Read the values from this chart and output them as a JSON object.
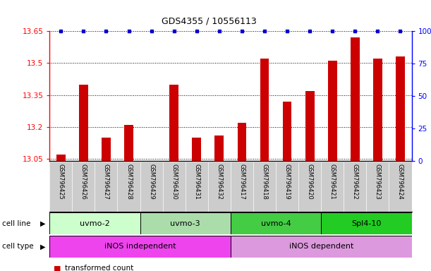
{
  "title": "GDS4355 / 10556113",
  "samples": [
    "GSM796425",
    "GSM796426",
    "GSM796427",
    "GSM796428",
    "GSM796429",
    "GSM796430",
    "GSM796431",
    "GSM796432",
    "GSM796417",
    "GSM796418",
    "GSM796419",
    "GSM796420",
    "GSM796421",
    "GSM796422",
    "GSM796423",
    "GSM796424"
  ],
  "bar_values": [
    13.07,
    13.4,
    13.15,
    13.21,
    13.04,
    13.4,
    13.15,
    13.16,
    13.22,
    13.52,
    13.32,
    13.37,
    13.51,
    13.62,
    13.52,
    13.53
  ],
  "percentile_values": [
    100,
    100,
    100,
    100,
    100,
    100,
    100,
    100,
    100,
    100,
    100,
    100,
    100,
    100,
    100,
    100
  ],
  "bar_color": "#cc0000",
  "percentile_color": "#0000cc",
  "ylim_left": [
    13.04,
    13.65
  ],
  "ylim_right": [
    0,
    100
  ],
  "yticks_left": [
    13.05,
    13.2,
    13.35,
    13.5,
    13.65
  ],
  "ytick_labels_left": [
    "13.05",
    "13.2",
    "13.35",
    "13.5",
    "13.65"
  ],
  "yticks_right": [
    0,
    25,
    50,
    75,
    100
  ],
  "ytick_labels_right": [
    "0",
    "25",
    "50",
    "75",
    "100%"
  ],
  "cell_lines": [
    {
      "label": "uvmo-2",
      "start": 0,
      "end": 3,
      "color": "#ccffcc"
    },
    {
      "label": "uvmo-3",
      "start": 4,
      "end": 7,
      "color": "#88ee88"
    },
    {
      "label": "uvmo-4",
      "start": 8,
      "end": 11,
      "color": "#44cc44"
    },
    {
      "label": "Spl4-10",
      "start": 12,
      "end": 15,
      "color": "#00bb00"
    }
  ],
  "cell_types": [
    {
      "label": "iNOS independent",
      "start": 0,
      "end": 7,
      "color": "#ee44ee"
    },
    {
      "label": "iNOS dependent",
      "start": 8,
      "end": 15,
      "color": "#dd99dd"
    }
  ],
  "sample_bg_color": "#cccccc",
  "bar_width": 0.4,
  "title_fontsize": 9,
  "tick_fontsize": 7.5,
  "sample_fontsize": 6,
  "cell_fontsize": 8
}
